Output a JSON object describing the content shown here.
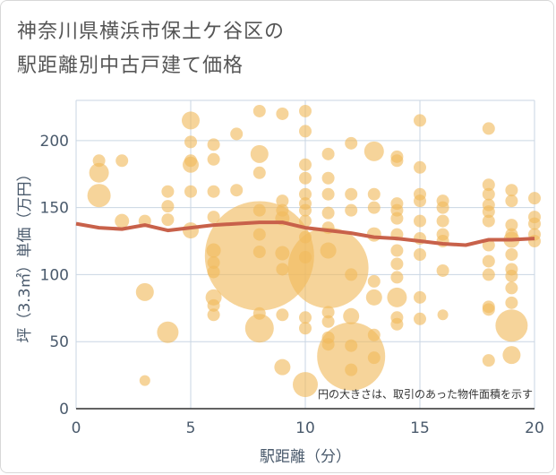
{
  "title": {
    "line1": "神奈川県横浜市保土ケ谷区の",
    "line2": "駅距離別中古戸建て価格"
  },
  "colors": {
    "bubble": "#f0b95c",
    "trend": "#c8614a",
    "grid": "#c9d6e3",
    "plot_bg": "#ffffff"
  },
  "chart_data": {
    "type": "scatter",
    "xlabel": "駅距離（分）",
    "ylabel": "坪（3.3㎡）単価（万円）",
    "xlim": [
      0,
      20
    ],
    "ylim": [
      0,
      230
    ],
    "xticks": [
      0,
      5,
      10,
      15,
      20
    ],
    "yticks": [
      0,
      50,
      100,
      150,
      200
    ],
    "note": "円の大きさは、取引のあった物件面積を示す",
    "points": [
      {
        "x": 1,
        "y": 176,
        "s": 11
      },
      {
        "x": 1,
        "y": 159,
        "s": 13
      },
      {
        "x": 1,
        "y": 185,
        "s": 7
      },
      {
        "x": 2,
        "y": 185,
        "s": 7
      },
      {
        "x": 2,
        "y": 140,
        "s": 8
      },
      {
        "x": 3,
        "y": 140,
        "s": 7
      },
      {
        "x": 3,
        "y": 87,
        "s": 10
      },
      {
        "x": 3,
        "y": 21,
        "s": 6
      },
      {
        "x": 4,
        "y": 162,
        "s": 7
      },
      {
        "x": 4,
        "y": 151,
        "s": 7
      },
      {
        "x": 4,
        "y": 141,
        "s": 7
      },
      {
        "x": 4,
        "y": 57,
        "s": 12
      },
      {
        "x": 5,
        "y": 215,
        "s": 10
      },
      {
        "x": 5,
        "y": 199,
        "s": 7
      },
      {
        "x": 5,
        "y": 185,
        "s": 7
      },
      {
        "x": 5,
        "y": 182,
        "s": 9
      },
      {
        "x": 5,
        "y": 162,
        "s": 7
      },
      {
        "x": 5,
        "y": 133,
        "s": 9
      },
      {
        "x": 6,
        "y": 197,
        "s": 7
      },
      {
        "x": 6,
        "y": 186,
        "s": 7
      },
      {
        "x": 6,
        "y": 162,
        "s": 7
      },
      {
        "x": 6,
        "y": 143,
        "s": 7
      },
      {
        "x": 6,
        "y": 118,
        "s": 8
      },
      {
        "x": 6,
        "y": 109,
        "s": 7
      },
      {
        "x": 6,
        "y": 102,
        "s": 7
      },
      {
        "x": 6,
        "y": 83,
        "s": 9
      },
      {
        "x": 6,
        "y": 77,
        "s": 7
      },
      {
        "x": 6,
        "y": 70,
        "s": 7
      },
      {
        "x": 7,
        "y": 205,
        "s": 7
      },
      {
        "x": 7,
        "y": 163,
        "s": 7
      },
      {
        "x": 8,
        "y": 222,
        "s": 7
      },
      {
        "x": 8,
        "y": 190,
        "s": 10
      },
      {
        "x": 8,
        "y": 176,
        "s": 7
      },
      {
        "x": 8,
        "y": 148,
        "s": 7
      },
      {
        "x": 8,
        "y": 130,
        "s": 7
      },
      {
        "x": 8,
        "y": 117,
        "s": 7
      },
      {
        "x": 8,
        "y": 114,
        "s": 61
      },
      {
        "x": 8,
        "y": 71,
        "s": 7
      },
      {
        "x": 8,
        "y": 60,
        "s": 16
      },
      {
        "x": 9,
        "y": 220,
        "s": 7
      },
      {
        "x": 9,
        "y": 155,
        "s": 7
      },
      {
        "x": 9,
        "y": 148,
        "s": 7
      },
      {
        "x": 9,
        "y": 142,
        "s": 8
      },
      {
        "x": 9,
        "y": 116,
        "s": 8
      },
      {
        "x": 9,
        "y": 104,
        "s": 7
      },
      {
        "x": 9,
        "y": 70,
        "s": 7
      },
      {
        "x": 9,
        "y": 31,
        "s": 9
      },
      {
        "x": 10,
        "y": 222,
        "s": 7
      },
      {
        "x": 10,
        "y": 207,
        "s": 7
      },
      {
        "x": 10,
        "y": 182,
        "s": 7
      },
      {
        "x": 10,
        "y": 172,
        "s": 7
      },
      {
        "x": 10,
        "y": 160,
        "s": 7
      },
      {
        "x": 10,
        "y": 153,
        "s": 7
      },
      {
        "x": 10,
        "y": 148,
        "s": 7
      },
      {
        "x": 10,
        "y": 140,
        "s": 7
      },
      {
        "x": 10,
        "y": 128,
        "s": 7
      },
      {
        "x": 10,
        "y": 113,
        "s": 7
      },
      {
        "x": 10,
        "y": 68,
        "s": 7
      },
      {
        "x": 10,
        "y": 60,
        "s": 7
      },
      {
        "x": 10,
        "y": 18,
        "s": 14
      },
      {
        "x": 11,
        "y": 190,
        "s": 7
      },
      {
        "x": 11,
        "y": 172,
        "s": 7
      },
      {
        "x": 11,
        "y": 160,
        "s": 7
      },
      {
        "x": 11,
        "y": 146,
        "s": 7
      },
      {
        "x": 11,
        "y": 135,
        "s": 7
      },
      {
        "x": 11,
        "y": 118,
        "s": 9
      },
      {
        "x": 11,
        "y": 105,
        "s": 45
      },
      {
        "x": 11,
        "y": 72,
        "s": 7
      },
      {
        "x": 11,
        "y": 65,
        "s": 7
      },
      {
        "x": 11,
        "y": 53,
        "s": 7
      },
      {
        "x": 11,
        "y": 48,
        "s": 7
      },
      {
        "x": 12,
        "y": 198,
        "s": 7
      },
      {
        "x": 12,
        "y": 160,
        "s": 7
      },
      {
        "x": 12,
        "y": 148,
        "s": 7
      },
      {
        "x": 12,
        "y": 100,
        "s": 7
      },
      {
        "x": 12,
        "y": 69,
        "s": 9
      },
      {
        "x": 12,
        "y": 47,
        "s": 7
      },
      {
        "x": 12,
        "y": 39,
        "s": 38
      },
      {
        "x": 12,
        "y": 29,
        "s": 7
      },
      {
        "x": 13,
        "y": 192,
        "s": 11
      },
      {
        "x": 13,
        "y": 160,
        "s": 7
      },
      {
        "x": 13,
        "y": 150,
        "s": 7
      },
      {
        "x": 13,
        "y": 130,
        "s": 8
      },
      {
        "x": 13,
        "y": 95,
        "s": 7
      },
      {
        "x": 13,
        "y": 83,
        "s": 9
      },
      {
        "x": 13,
        "y": 55,
        "s": 7
      },
      {
        "x": 13,
        "y": 38,
        "s": 7
      },
      {
        "x": 14,
        "y": 188,
        "s": 7
      },
      {
        "x": 14,
        "y": 185,
        "s": 7
      },
      {
        "x": 14,
        "y": 153,
        "s": 7
      },
      {
        "x": 14,
        "y": 148,
        "s": 7
      },
      {
        "x": 14,
        "y": 142,
        "s": 7
      },
      {
        "x": 14,
        "y": 130,
        "s": 7
      },
      {
        "x": 14,
        "y": 118,
        "s": 7
      },
      {
        "x": 14,
        "y": 108,
        "s": 7
      },
      {
        "x": 14,
        "y": 98,
        "s": 7
      },
      {
        "x": 14,
        "y": 83,
        "s": 11
      },
      {
        "x": 14,
        "y": 68,
        "s": 7
      },
      {
        "x": 14,
        "y": 63,
        "s": 7
      },
      {
        "x": 15,
        "y": 215,
        "s": 7
      },
      {
        "x": 15,
        "y": 180,
        "s": 7
      },
      {
        "x": 15,
        "y": 160,
        "s": 7
      },
      {
        "x": 15,
        "y": 155,
        "s": 7
      },
      {
        "x": 15,
        "y": 140,
        "s": 7
      },
      {
        "x": 15,
        "y": 127,
        "s": 7
      },
      {
        "x": 15,
        "y": 115,
        "s": 7
      },
      {
        "x": 15,
        "y": 83,
        "s": 7
      },
      {
        "x": 15,
        "y": 67,
        "s": 7
      },
      {
        "x": 16,
        "y": 155,
        "s": 7
      },
      {
        "x": 16,
        "y": 150,
        "s": 7
      },
      {
        "x": 16,
        "y": 140,
        "s": 7
      },
      {
        "x": 16,
        "y": 130,
        "s": 7
      },
      {
        "x": 16,
        "y": 125,
        "s": 7
      },
      {
        "x": 16,
        "y": 103,
        "s": 7
      },
      {
        "x": 16,
        "y": 70,
        "s": 6
      },
      {
        "x": 18,
        "y": 209,
        "s": 7
      },
      {
        "x": 18,
        "y": 167,
        "s": 7
      },
      {
        "x": 18,
        "y": 160,
        "s": 7
      },
      {
        "x": 18,
        "y": 152,
        "s": 7
      },
      {
        "x": 18,
        "y": 147,
        "s": 7
      },
      {
        "x": 18,
        "y": 140,
        "s": 7
      },
      {
        "x": 18,
        "y": 122,
        "s": 7
      },
      {
        "x": 18,
        "y": 110,
        "s": 7
      },
      {
        "x": 18,
        "y": 100,
        "s": 7
      },
      {
        "x": 18,
        "y": 76,
        "s": 7
      },
      {
        "x": 18,
        "y": 74,
        "s": 7
      },
      {
        "x": 18,
        "y": 36,
        "s": 7
      },
      {
        "x": 19,
        "y": 163,
        "s": 7
      },
      {
        "x": 19,
        "y": 155,
        "s": 7
      },
      {
        "x": 19,
        "y": 137,
        "s": 7
      },
      {
        "x": 19,
        "y": 130,
        "s": 7
      },
      {
        "x": 19,
        "y": 126,
        "s": 9
      },
      {
        "x": 19,
        "y": 115,
        "s": 7
      },
      {
        "x": 19,
        "y": 104,
        "s": 7
      },
      {
        "x": 19,
        "y": 99,
        "s": 7
      },
      {
        "x": 19,
        "y": 90,
        "s": 7
      },
      {
        "x": 19,
        "y": 79,
        "s": 7
      },
      {
        "x": 19,
        "y": 62,
        "s": 18
      },
      {
        "x": 19,
        "y": 40,
        "s": 10
      },
      {
        "x": 20,
        "y": 157,
        "s": 7
      },
      {
        "x": 20,
        "y": 143,
        "s": 7
      },
      {
        "x": 20,
        "y": 138,
        "s": 7
      },
      {
        "x": 20,
        "y": 130,
        "s": 7
      },
      {
        "x": 20,
        "y": 125,
        "s": 7
      }
    ],
    "trend": {
      "name": "",
      "x": [
        0,
        1,
        2,
        3,
        4,
        5,
        6,
        7,
        8,
        9,
        10,
        11,
        12,
        13,
        14,
        15,
        16,
        17,
        18,
        19,
        20
      ],
      "y": [
        138,
        135,
        134,
        137,
        133,
        135,
        137,
        138,
        139,
        139,
        135,
        133,
        131,
        128,
        127,
        125,
        123,
        122,
        126,
        126,
        127
      ]
    }
  }
}
